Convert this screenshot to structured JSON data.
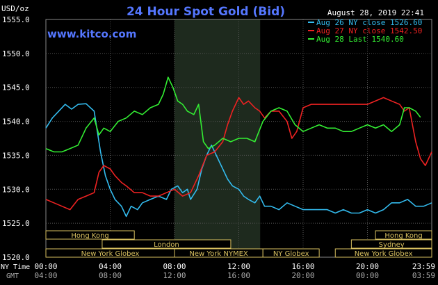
{
  "chart_data": {
    "type": "line",
    "title": "24 Hour Spot Gold (Bid)",
    "ylabel": "USD/oz",
    "website": "www.kitco.com",
    "timestamp": "August 28, 2019 22:41",
    "ylim": [
      1520.0,
      1555.0
    ],
    "yticks": [
      "1520.0",
      "1525.0",
      "1530.0",
      "1535.0",
      "1540.0",
      "1545.0",
      "1550.0",
      "1555.0"
    ],
    "x_axis_ny_label": "NY Time",
    "x_axis_gmt_label": "GMT",
    "x_ticks_ny": [
      "00:00",
      "04:00",
      "08:00",
      "12:00",
      "16:00",
      "20:00",
      "23:59"
    ],
    "x_ticks_gmt": [
      "04:00",
      "08:00",
      "12:00",
      "16:00",
      "20:00",
      "00:00",
      "03:59"
    ],
    "shaded_region": {
      "from_hour": 8.0,
      "to_hour": 13.33
    },
    "sessions": [
      {
        "label": "Hong Kong",
        "start_hour": 0.0,
        "end_hour": 5.5,
        "row": 1
      },
      {
        "label": "London",
        "start_hour": 3.5,
        "end_hour": 11.5,
        "row": 2
      },
      {
        "label": "New York Globex",
        "start_hour": 0.0,
        "end_hour": 8.0,
        "row": 3
      },
      {
        "label": "New York NYMEX",
        "start_hour": 8.0,
        "end_hour": 13.5,
        "row": 3
      },
      {
        "label": "NY Globex",
        "start_hour": 13.5,
        "end_hour": 17.0,
        "row": 3
      },
      {
        "label": "Hong Kong",
        "start_hour": 20.5,
        "end_hour": 24.0,
        "row": 1
      },
      {
        "label": "Sydney",
        "start_hour": 19.0,
        "end_hour": 24.0,
        "row": 2
      },
      {
        "label": "New York Globex",
        "start_hour": 18.0,
        "end_hour": 24.0,
        "row": 3
      }
    ],
    "series": [
      {
        "name": "Aug 26 NY close 1526.60",
        "color": "#33bbee",
        "x": [
          0.0,
          0.4,
          0.8,
          1.2,
          1.6,
          2.0,
          2.5,
          3.0,
          3.4,
          3.7,
          4.0,
          4.3,
          4.7,
          5.0,
          5.3,
          5.7,
          6.0,
          6.5,
          7.0,
          7.5,
          7.8,
          8.2,
          8.5,
          8.8,
          9.0,
          9.4,
          9.7,
          10.0,
          10.3,
          10.6,
          11.0,
          11.3,
          11.6,
          12.0,
          12.3,
          12.6,
          13.0,
          13.3,
          13.6,
          14.0,
          14.5,
          15.0,
          15.5,
          16.0,
          16.5,
          17.0,
          17.5,
          18.0,
          18.5,
          19.0,
          19.5,
          20.0,
          20.5,
          21.0,
          21.5,
          22.0,
          22.5,
          23.0,
          23.5,
          24.0
        ],
        "y": [
          1539.0,
          1540.5,
          1541.5,
          1542.5,
          1541.8,
          1542.5,
          1542.6,
          1541.5,
          1535.5,
          1532.0,
          1530.0,
          1528.5,
          1527.5,
          1526.0,
          1527.5,
          1527.0,
          1528.0,
          1528.5,
          1529.0,
          1528.5,
          1530.0,
          1530.5,
          1529.5,
          1530.0,
          1528.5,
          1530.0,
          1533.0,
          1535.0,
          1536.5,
          1535.0,
          1533.0,
          1531.5,
          1530.5,
          1530.0,
          1529.0,
          1528.5,
          1528.0,
          1529.0,
          1527.5,
          1527.5,
          1527.0,
          1528.0,
          1527.5,
          1527.0,
          1527.0,
          1527.0,
          1527.0,
          1526.5,
          1527.0,
          1526.5,
          1526.5,
          1527.0,
          1526.5,
          1527.0,
          1528.0,
          1528.0,
          1528.5,
          1527.5,
          1527.5,
          1528.0
        ]
      },
      {
        "name": "Aug 27 NY close 1542.50",
        "color": "#ee2222",
        "x": [
          0.0,
          0.5,
          1.0,
          1.5,
          2.0,
          2.5,
          3.0,
          3.3,
          3.6,
          4.0,
          4.3,
          4.7,
          5.0,
          5.5,
          6.0,
          6.5,
          7.0,
          7.5,
          8.0,
          8.5,
          9.0,
          9.5,
          10.0,
          10.5,
          11.0,
          11.3,
          11.6,
          12.0,
          12.3,
          12.6,
          13.0,
          13.3,
          13.6,
          14.0,
          14.5,
          15.0,
          15.3,
          15.6,
          16.0,
          16.5,
          17.0,
          17.5,
          18.0,
          18.5,
          19.0,
          19.5,
          20.0,
          20.5,
          21.0,
          21.5,
          22.0,
          22.3,
          22.6,
          23.0,
          23.3,
          23.6,
          24.0
        ],
        "y": [
          1528.5,
          1528.0,
          1527.5,
          1527.0,
          1528.5,
          1529.0,
          1529.5,
          1532.5,
          1533.5,
          1533.0,
          1532.0,
          1531.0,
          1530.5,
          1529.5,
          1529.5,
          1529.0,
          1529.0,
          1529.5,
          1530.0,
          1529.0,
          1529.5,
          1532.0,
          1535.0,
          1535.5,
          1537.0,
          1539.5,
          1541.5,
          1543.5,
          1542.5,
          1543.0,
          1542.0,
          1541.5,
          1540.5,
          1541.5,
          1541.5,
          1540.0,
          1537.5,
          1538.5,
          1542.0,
          1542.5,
          1542.5,
          1542.5,
          1542.5,
          1542.5,
          1542.5,
          1542.5,
          1542.5,
          1543.0,
          1543.5,
          1543.0,
          1542.5,
          1541.5,
          1542.0,
          1537.0,
          1534.5,
          1533.5,
          1535.5
        ]
      },
      {
        "name": "Aug 28 Last 1540.60",
        "color": "#33ee33",
        "x": [
          0.0,
          0.5,
          1.0,
          1.5,
          2.0,
          2.5,
          3.0,
          3.3,
          3.6,
          4.0,
          4.5,
          5.0,
          5.5,
          6.0,
          6.5,
          7.0,
          7.3,
          7.6,
          7.9,
          8.2,
          8.5,
          8.8,
          9.2,
          9.5,
          9.8,
          10.1,
          10.5,
          11.0,
          11.5,
          12.0,
          12.5,
          13.0,
          13.5,
          14.0,
          14.5,
          15.0,
          15.5,
          16.0,
          16.5,
          17.0,
          17.5,
          18.0,
          18.5,
          19.0,
          19.5,
          20.0,
          20.5,
          21.0,
          21.5,
          22.0,
          22.3,
          22.6,
          23.0,
          23.3
        ],
        "y": [
          1536.0,
          1535.5,
          1535.5,
          1536.0,
          1536.5,
          1539.0,
          1540.5,
          1538.0,
          1539.0,
          1538.5,
          1540.0,
          1540.5,
          1541.5,
          1541.0,
          1542.0,
          1542.5,
          1544.0,
          1546.5,
          1545.0,
          1543.0,
          1542.5,
          1541.5,
          1541.0,
          1542.5,
          1537.0,
          1536.0,
          1536.5,
          1537.5,
          1537.0,
          1537.5,
          1537.5,
          1537.0,
          1540.0,
          1541.5,
          1542.0,
          1541.5,
          1539.5,
          1538.5,
          1539.0,
          1539.5,
          1539.0,
          1539.0,
          1538.5,
          1538.5,
          1539.0,
          1539.5,
          1539.0,
          1539.5,
          1538.5,
          1539.5,
          1542.0,
          1542.0,
          1541.5,
          1540.6
        ]
      }
    ]
  }
}
